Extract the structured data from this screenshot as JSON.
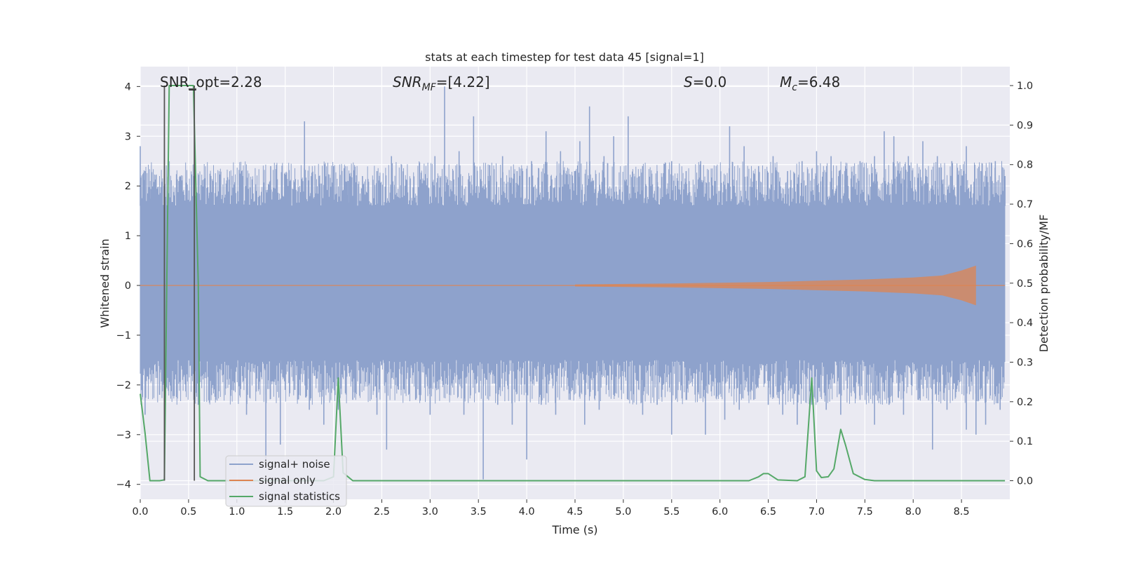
{
  "chart_data": {
    "type": "line",
    "title": "stats at each timestep for test data 45 [signal=1]",
    "xlabel": "Time (s)",
    "ylabel": "Whitened strain",
    "ylabel_right": "Detection probability/MF",
    "xlim": [
      0.0,
      9.0
    ],
    "ylim": [
      -4.3,
      4.4
    ],
    "ylim_right": [
      -0.047,
      1.048
    ],
    "x_ticks": [
      "0.0",
      "0.5",
      "1.0",
      "1.5",
      "2.0",
      "2.5",
      "3.0",
      "3.5",
      "4.0",
      "4.5",
      "5.0",
      "5.5",
      "6.0",
      "6.5",
      "7.0",
      "7.5",
      "8.0",
      "8.5"
    ],
    "y_ticks": [
      "4",
      "3",
      "2",
      "1",
      "0",
      "−1",
      "−2",
      "−3",
      "−4"
    ],
    "y_ticks_right": [
      "1.0",
      "0.9",
      "0.8",
      "0.7",
      "0.6",
      "0.5",
      "0.4",
      "0.3",
      "0.2",
      "0.1",
      "0.0"
    ],
    "annotations": {
      "snr_opt": "SNR_opt=2.28",
      "snr_mf_base": "SNR",
      "snr_mf_sub": "MF",
      "snr_mf_value": "=[4.22]",
      "s_base": "S",
      "s_value": "=0.0",
      "mc_base": "M",
      "mc_sub": "c",
      "mc_value": "=6.48"
    },
    "legend": {
      "position": "lower left",
      "entries": [
        "signal+ noise",
        "signal only",
        "signal statistics"
      ]
    },
    "colors": {
      "noise": "#8ea2cc",
      "signal": "#dd8452",
      "stats": "#55a868",
      "marker": "#555555",
      "background": "#eaeaf2",
      "grid": "#ffffff"
    },
    "series": [
      {
        "name": "signal+ noise",
        "band": {
          "positive_env": 1.6,
          "negative_env": -1.5
        },
        "peaks": [
          [
            0.0,
            2.8
          ],
          [
            0.05,
            2.3
          ],
          [
            0.1,
            2.1
          ],
          [
            0.25,
            2.4
          ],
          [
            0.4,
            2.1
          ],
          [
            0.55,
            2.2
          ],
          [
            0.7,
            1.8
          ],
          [
            0.9,
            1.9
          ],
          [
            1.05,
            2.3
          ],
          [
            1.2,
            1.9
          ],
          [
            1.35,
            2.4
          ],
          [
            1.55,
            2.1
          ],
          [
            1.7,
            3.3
          ],
          [
            1.85,
            2.2
          ],
          [
            2.0,
            2.4
          ],
          [
            2.15,
            2.1
          ],
          [
            2.3,
            2.2
          ],
          [
            2.45,
            2.3
          ],
          [
            2.6,
            2.6
          ],
          [
            2.75,
            2.1
          ],
          [
            2.9,
            2.0
          ],
          [
            3.05,
            2.6
          ],
          [
            3.15,
            4.0
          ],
          [
            3.3,
            2.7
          ],
          [
            3.45,
            3.4
          ],
          [
            3.6,
            2.2
          ],
          [
            3.75,
            2.6
          ],
          [
            3.9,
            2.3
          ],
          [
            4.05,
            2.5
          ],
          [
            4.2,
            3.1
          ],
          [
            4.35,
            2.7
          ],
          [
            4.55,
            2.9
          ],
          [
            4.65,
            3.6
          ],
          [
            4.8,
            2.6
          ],
          [
            4.9,
            3.0
          ],
          [
            5.05,
            3.4
          ],
          [
            5.2,
            2.4
          ],
          [
            5.35,
            2.3
          ],
          [
            5.5,
            2.5
          ],
          [
            5.65,
            2.3
          ],
          [
            5.8,
            2.5
          ],
          [
            5.95,
            2.1
          ],
          [
            6.1,
            3.2
          ],
          [
            6.25,
            2.8
          ],
          [
            6.4,
            2.4
          ],
          [
            6.55,
            2.6
          ],
          [
            6.7,
            2.3
          ],
          [
            6.85,
            2.5
          ],
          [
            7.0,
            2.7
          ],
          [
            7.15,
            2.6
          ],
          [
            7.3,
            2.4
          ],
          [
            7.45,
            2.5
          ],
          [
            7.6,
            2.6
          ],
          [
            7.7,
            3.1
          ],
          [
            7.8,
            3.0
          ],
          [
            7.95,
            2.6
          ],
          [
            8.1,
            2.9
          ],
          [
            8.25,
            2.6
          ],
          [
            8.4,
            2.5
          ],
          [
            8.55,
            2.8
          ],
          [
            8.7,
            2.3
          ],
          [
            8.85,
            2.5
          ],
          [
            8.95,
            2.2
          ]
        ],
        "troughs": [
          [
            0.05,
            -2.6
          ],
          [
            0.2,
            -2.2
          ],
          [
            0.35,
            -1.9
          ],
          [
            0.6,
            -2.4
          ],
          [
            0.75,
            -2.0
          ],
          [
            0.95,
            -2.1
          ],
          [
            1.1,
            -2.6
          ],
          [
            1.3,
            -3.5
          ],
          [
            1.45,
            -3.2
          ],
          [
            1.6,
            -2.1
          ],
          [
            1.75,
            -2.5
          ],
          [
            1.9,
            -2.8
          ],
          [
            2.05,
            -2.5
          ],
          [
            2.2,
            -2.3
          ],
          [
            2.45,
            -2.6
          ],
          [
            2.55,
            -3.3
          ],
          [
            2.7,
            -2.1
          ],
          [
            2.85,
            -2.3
          ],
          [
            3.0,
            -2.6
          ],
          [
            3.2,
            -2.2
          ],
          [
            3.35,
            -2.6
          ],
          [
            3.55,
            -3.9
          ],
          [
            3.7,
            -2.4
          ],
          [
            3.85,
            -2.8
          ],
          [
            4.0,
            -3.5
          ],
          [
            4.15,
            -2.4
          ],
          [
            4.3,
            -2.6
          ],
          [
            4.45,
            -2.3
          ],
          [
            4.6,
            -2.8
          ],
          [
            4.75,
            -2.5
          ],
          [
            4.9,
            -2.2
          ],
          [
            5.05,
            -2.3
          ],
          [
            5.2,
            -2.6
          ],
          [
            5.35,
            -2.4
          ],
          [
            5.5,
            -3.0
          ],
          [
            5.65,
            -2.3
          ],
          [
            5.85,
            -3.0
          ],
          [
            6.05,
            -2.7
          ],
          [
            6.2,
            -2.5
          ],
          [
            6.35,
            -2.3
          ],
          [
            6.5,
            -2.4
          ],
          [
            6.65,
            -2.6
          ],
          [
            6.8,
            -2.8
          ],
          [
            6.95,
            -2.4
          ],
          [
            7.1,
            -2.5
          ],
          [
            7.25,
            -2.6
          ],
          [
            7.45,
            -2.3
          ],
          [
            7.6,
            -2.8
          ],
          [
            7.75,
            -2.4
          ],
          [
            7.9,
            -2.6
          ],
          [
            8.05,
            -2.3
          ],
          [
            8.2,
            -3.3
          ],
          [
            8.35,
            -2.5
          ],
          [
            8.55,
            -2.9
          ],
          [
            8.65,
            -3.0
          ],
          [
            8.75,
            -2.8
          ],
          [
            8.9,
            -2.5
          ]
        ]
      },
      {
        "name": "signal only",
        "envelope": [
          [
            4.5,
            0.02
          ],
          [
            5.5,
            0.04
          ],
          [
            6.5,
            0.07
          ],
          [
            7.5,
            0.12
          ],
          [
            8.0,
            0.16
          ],
          [
            8.3,
            0.2
          ],
          [
            8.5,
            0.3
          ],
          [
            8.65,
            0.4
          ]
        ]
      },
      {
        "name": "signal statistics",
        "axis": "right",
        "x": [
          0.0,
          0.05,
          0.1,
          0.2,
          0.25,
          0.3,
          0.55,
          0.6,
          0.62,
          0.7,
          1.9,
          2.0,
          2.05,
          2.1,
          2.2,
          6.3,
          6.4,
          6.45,
          6.5,
          6.6,
          6.8,
          6.88,
          6.95,
          7.0,
          7.05,
          7.12,
          7.18,
          7.25,
          7.3,
          7.38,
          7.5,
          7.6,
          8.95
        ],
        "values": [
          0.22,
          0.12,
          0.0,
          0.0,
          0.002,
          1.0,
          1.0,
          0.5,
          0.01,
          0.0,
          0.0,
          0.01,
          0.26,
          0.02,
          0.0,
          0.0,
          0.01,
          0.018,
          0.018,
          0.002,
          0.0,
          0.01,
          0.26,
          0.025,
          0.008,
          0.01,
          0.03,
          0.13,
          0.09,
          0.018,
          0.003,
          0.0,
          0.0
        ]
      }
    ],
    "markers": {
      "vlines": [
        0.25,
        0.56
      ],
      "hline": {
        "y": 3.95,
        "x_from": 0.5,
        "x_to": 0.58
      }
    }
  }
}
